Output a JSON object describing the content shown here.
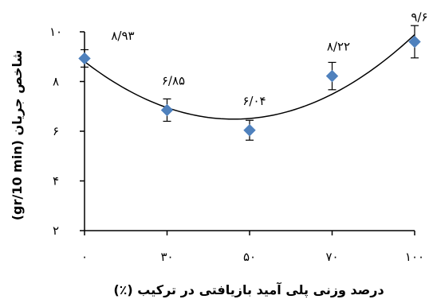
{
  "chart_data": {
    "type": "scatter",
    "xlabel": "درصد وزنی پلی آمید بازیافتی در ترکیب (٪)",
    "ylabel": "شاخص جریان (gr/10 min)",
    "x_ticks": [
      "۰",
      "۳۰",
      "۵۰",
      "۷۰",
      "۱۰۰"
    ],
    "y_ticks": [
      "۲",
      "۴",
      "۶",
      "۸",
      "۱۰"
    ],
    "ylim": [
      2,
      10
    ],
    "grid": false,
    "legend": "none",
    "marker_color": "#4f81bd",
    "points": [
      {
        "category": "۰",
        "y": 8.93,
        "err": 0.35,
        "label": "۸/۹۳"
      },
      {
        "category": "۳۰",
        "y": 6.85,
        "err": 0.45,
        "label": "۶/۸۵"
      },
      {
        "category": "۵۰",
        "y": 6.04,
        "err": 0.4,
        "label": "۶/۰۴"
      },
      {
        "category": "۷۰",
        "y": 8.22,
        "err": 0.55,
        "label": "۸/۲۲"
      },
      {
        "category": "۱۰۰",
        "y": 9.6,
        "err": 0.65,
        "label": "۹/۶"
      }
    ],
    "trendline": {
      "type": "polynomial",
      "order": 2
    }
  }
}
